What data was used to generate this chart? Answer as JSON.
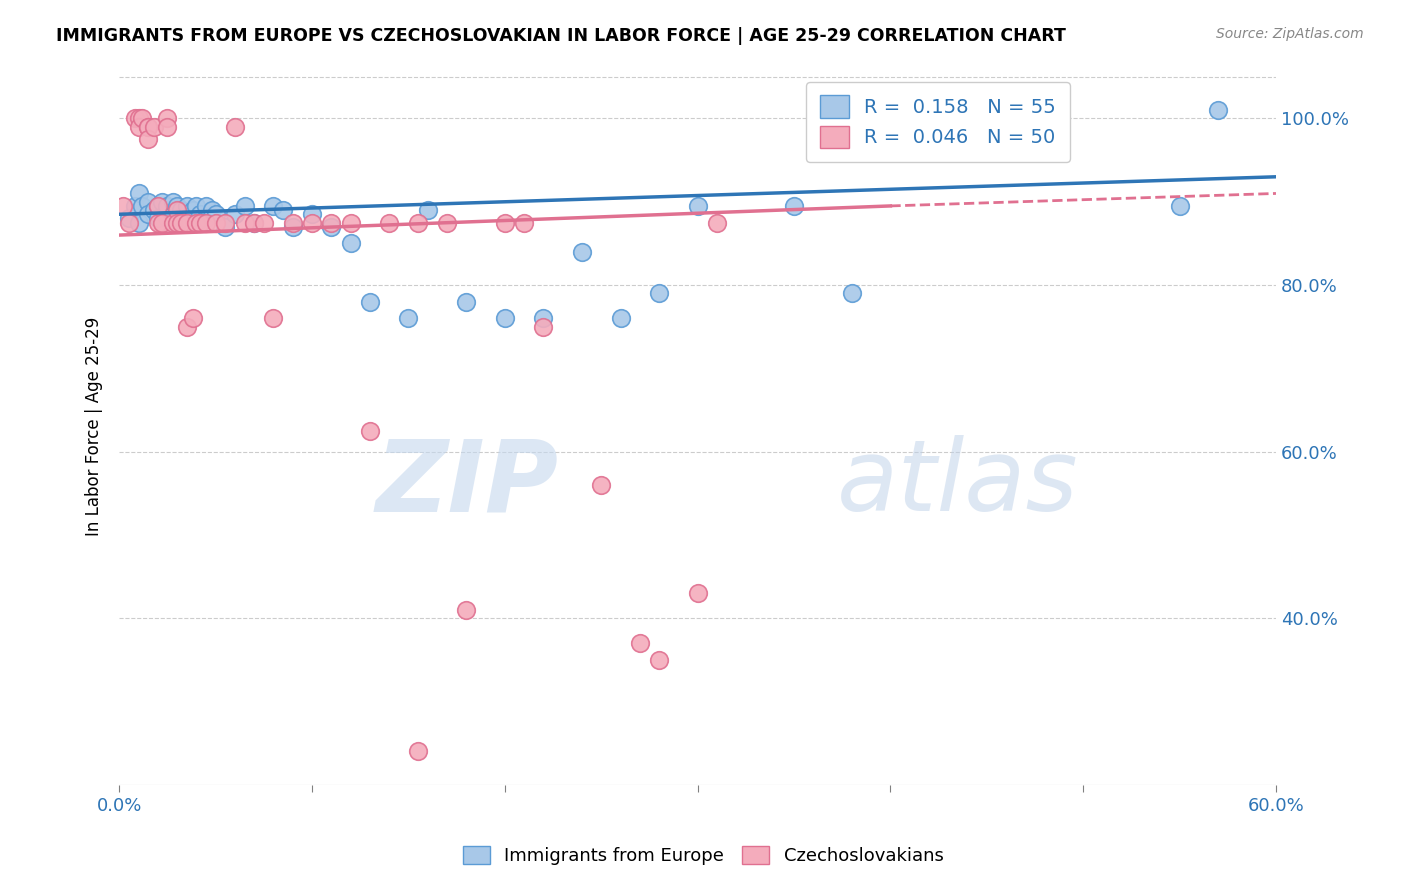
{
  "title": "IMMIGRANTS FROM EUROPE VS CZECHOSLOVAKIAN IN LABOR FORCE | AGE 25-29 CORRELATION CHART",
  "source": "Source: ZipAtlas.com",
  "ylabel": "In Labor Force | Age 25-29",
  "xmin": 0.0,
  "xmax": 0.6,
  "ymin": 0.2,
  "ymax": 1.06,
  "yticks": [
    0.4,
    0.6,
    0.8,
    1.0
  ],
  "ytick_labels": [
    "40.0%",
    "60.0%",
    "80.0%",
    "100.0%"
  ],
  "blue_R": 0.158,
  "blue_N": 55,
  "pink_R": 0.046,
  "pink_N": 50,
  "blue_color": "#A8C8E8",
  "blue_edge": "#5B9BD5",
  "pink_color": "#F4ACBC",
  "pink_edge": "#E07090",
  "blue_line_color": "#2E75B6",
  "pink_line_color": "#E07090",
  "watermark_zip": "ZIP",
  "watermark_atlas": "atlas",
  "blue_scatter_x": [
    0.005,
    0.008,
    0.01,
    0.01,
    0.012,
    0.015,
    0.015,
    0.018,
    0.02,
    0.02,
    0.022,
    0.025,
    0.025,
    0.025,
    0.028,
    0.028,
    0.03,
    0.03,
    0.03,
    0.032,
    0.032,
    0.035,
    0.035,
    0.038,
    0.04,
    0.04,
    0.042,
    0.045,
    0.045,
    0.048,
    0.05,
    0.055,
    0.06,
    0.065,
    0.07,
    0.08,
    0.085,
    0.09,
    0.1,
    0.11,
    0.12,
    0.13,
    0.15,
    0.16,
    0.18,
    0.2,
    0.22,
    0.24,
    0.26,
    0.28,
    0.3,
    0.35,
    0.38,
    0.55,
    0.57
  ],
  "blue_scatter_y": [
    0.88,
    0.895,
    0.91,
    0.875,
    0.895,
    0.9,
    0.885,
    0.89,
    0.895,
    0.88,
    0.9,
    0.89,
    0.88,
    0.895,
    0.885,
    0.9,
    0.89,
    0.875,
    0.895,
    0.88,
    0.89,
    0.895,
    0.88,
    0.89,
    0.875,
    0.895,
    0.885,
    0.88,
    0.895,
    0.89,
    0.885,
    0.87,
    0.885,
    0.895,
    0.875,
    0.895,
    0.89,
    0.87,
    0.885,
    0.87,
    0.85,
    0.78,
    0.76,
    0.89,
    0.78,
    0.76,
    0.76,
    0.84,
    0.76,
    0.79,
    0.895,
    0.895,
    0.79,
    0.895,
    1.01
  ],
  "pink_scatter_x": [
    0.002,
    0.005,
    0.008,
    0.01,
    0.01,
    0.012,
    0.015,
    0.015,
    0.015,
    0.018,
    0.02,
    0.02,
    0.022,
    0.025,
    0.025,
    0.028,
    0.03,
    0.03,
    0.032,
    0.035,
    0.035,
    0.038,
    0.04,
    0.042,
    0.045,
    0.05,
    0.055,
    0.06,
    0.065,
    0.07,
    0.075,
    0.08,
    0.09,
    0.1,
    0.11,
    0.12,
    0.13,
    0.14,
    0.155,
    0.17,
    0.18,
    0.2,
    0.21,
    0.22,
    0.25,
    0.27,
    0.28,
    0.3,
    0.31,
    0.155
  ],
  "pink_scatter_y": [
    0.895,
    0.875,
    1.0,
    1.0,
    0.99,
    1.0,
    0.99,
    0.99,
    0.975,
    0.99,
    0.875,
    0.895,
    0.875,
    1.0,
    0.99,
    0.875,
    0.89,
    0.875,
    0.875,
    0.875,
    0.75,
    0.76,
    0.875,
    0.875,
    0.875,
    0.875,
    0.875,
    0.99,
    0.875,
    0.875,
    0.875,
    0.76,
    0.875,
    0.875,
    0.875,
    0.875,
    0.625,
    0.875,
    0.875,
    0.875,
    0.41,
    0.875,
    0.875,
    0.75,
    0.56,
    0.37,
    0.35,
    0.43,
    0.875,
    0.24
  ]
}
